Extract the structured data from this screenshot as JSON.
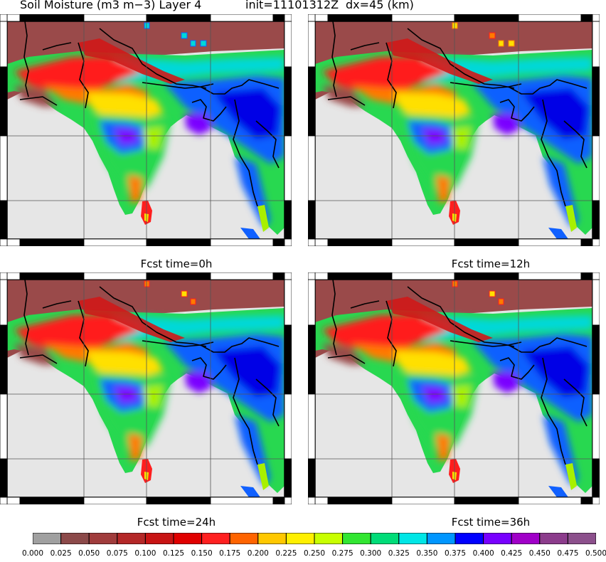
{
  "header": {
    "variable": "Soil Moisture (m3 m−3) Layer 4",
    "init": "init=11101312Z",
    "dx": "dx=45 (km)"
  },
  "panels": [
    {
      "caption": "Fcst time=0h"
    },
    {
      "caption": "Fcst time=12h"
    },
    {
      "caption": "Fcst time=24h"
    },
    {
      "caption": "Fcst time=36h"
    }
  ],
  "colorbar": {
    "labels": [
      "0.000",
      "0.025",
      "0.050",
      "0.075",
      "0.100",
      "0.125",
      "0.150",
      "0.175",
      "0.200",
      "0.225",
      "0.250",
      "0.275",
      "0.300",
      "0.325",
      "0.350",
      "0.375",
      "0.400",
      "0.425",
      "0.450",
      "0.475",
      "0.500"
    ],
    "colors": [
      "#a0a0a0",
      "#8c4a4a",
      "#a03c3c",
      "#b42828",
      "#c81414",
      "#e00000",
      "#ff2020",
      "#ff6400",
      "#ffc800",
      "#fff000",
      "#c8ff00",
      "#32e632",
      "#00dc78",
      "#00e6e6",
      "#0096ff",
      "#0000ff",
      "#7800ff",
      "#a000c8",
      "#8c3c8c",
      "#8c508c"
    ]
  },
  "map_colors": {
    "ocean": "#e6e6e6",
    "dry": "#9a4a4a",
    "north_band": "#d01818",
    "red": "#ff1e1e",
    "orange": "#ff7a00",
    "yellow": "#ffe000",
    "lightgreen": "#a8f000",
    "green": "#28d850",
    "cyan": "#00d8d8",
    "blue": "#1060ff",
    "deepblue": "#0000e6",
    "purple": "#7a00ff"
  }
}
